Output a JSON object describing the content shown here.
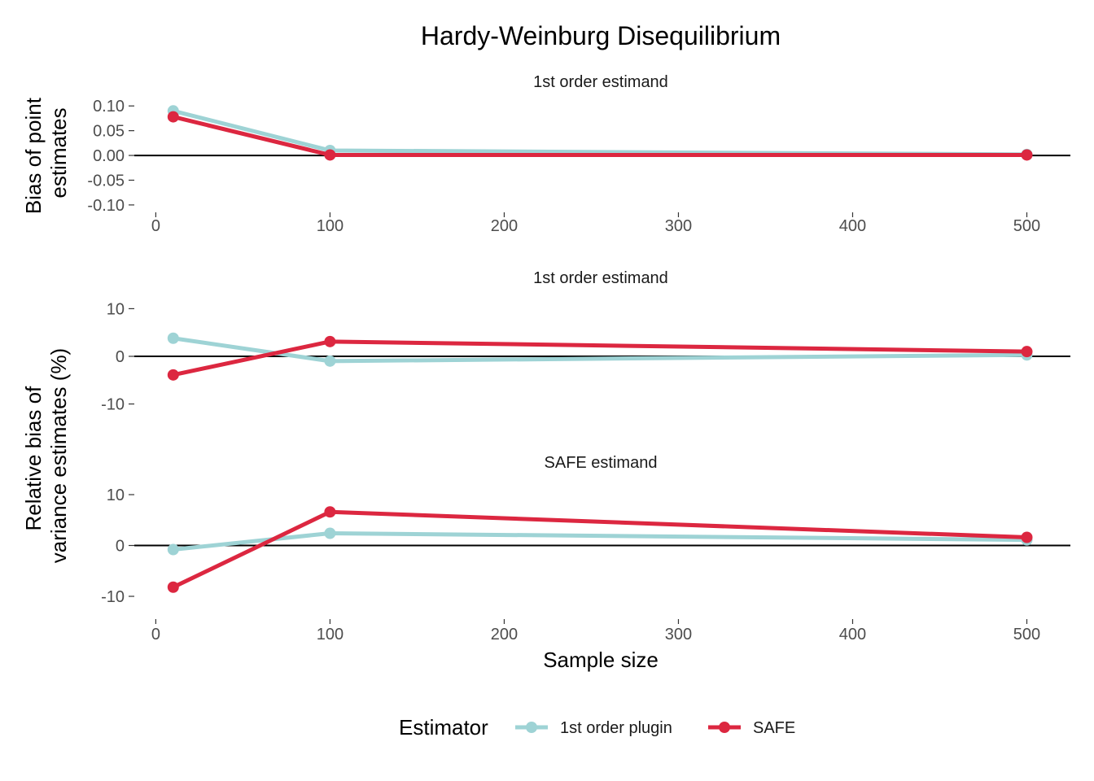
{
  "chart_data": {
    "type": "line",
    "title": "Hardy-Weinburg Disequilibrium",
    "xlabel": "Sample size",
    "ylabel_top": [
      "Bias of point",
      "estimates"
    ],
    "ylabel_bottom": [
      "Relative bias of",
      "variance estimates (%)"
    ],
    "xlim": [
      -10,
      525
    ],
    "xticks": [
      0,
      100,
      200,
      300,
      400,
      500
    ],
    "legend": {
      "title": "Estimator",
      "position": "bottom",
      "entries": [
        "1st order plugin",
        "SAFE"
      ]
    },
    "colors": {
      "1st order plugin": "#9ed3d5",
      "SAFE": "#dc2740"
    },
    "panels": [
      {
        "strip": "1st order estimand",
        "ylim": [
          -0.11,
          0.125
        ],
        "yticks": [
          0.1,
          0.05,
          0.0,
          -0.05,
          -0.1
        ],
        "ytick_labels": [
          "0.10",
          "0.05",
          "0.00",
          "-0.05",
          "-0.10"
        ],
        "x": [
          10,
          100,
          500
        ],
        "series": [
          {
            "name": "1st order plugin",
            "values": [
              0.09,
              0.01,
              0.002
            ]
          },
          {
            "name": "SAFE",
            "values": [
              0.078,
              0.001,
              0.001
            ]
          }
        ]
      },
      {
        "strip": "1st order estimand",
        "ylim": [
          -14,
          14
        ],
        "yticks": [
          10,
          0,
          -10
        ],
        "ytick_labels": [
          "10",
          "0",
          "-10"
        ],
        "x": [
          10,
          100,
          500
        ],
        "series": [
          {
            "name": "1st order plugin",
            "values": [
              3.8,
              -1.0,
              0.3
            ]
          },
          {
            "name": "SAFE",
            "values": [
              -3.9,
              3.1,
              1.0
            ]
          }
        ]
      },
      {
        "strip": "SAFE estimand",
        "ylim": [
          -14,
          14
        ],
        "yticks": [
          10,
          0,
          -10
        ],
        "ytick_labels": [
          "10",
          "0",
          "-10"
        ],
        "x": [
          10,
          100,
          500
        ],
        "series": [
          {
            "name": "1st order plugin",
            "values": [
              -0.8,
              2.4,
              1.1
            ]
          },
          {
            "name": "SAFE",
            "values": [
              -8.2,
              6.6,
              1.6
            ]
          }
        ]
      }
    ]
  }
}
